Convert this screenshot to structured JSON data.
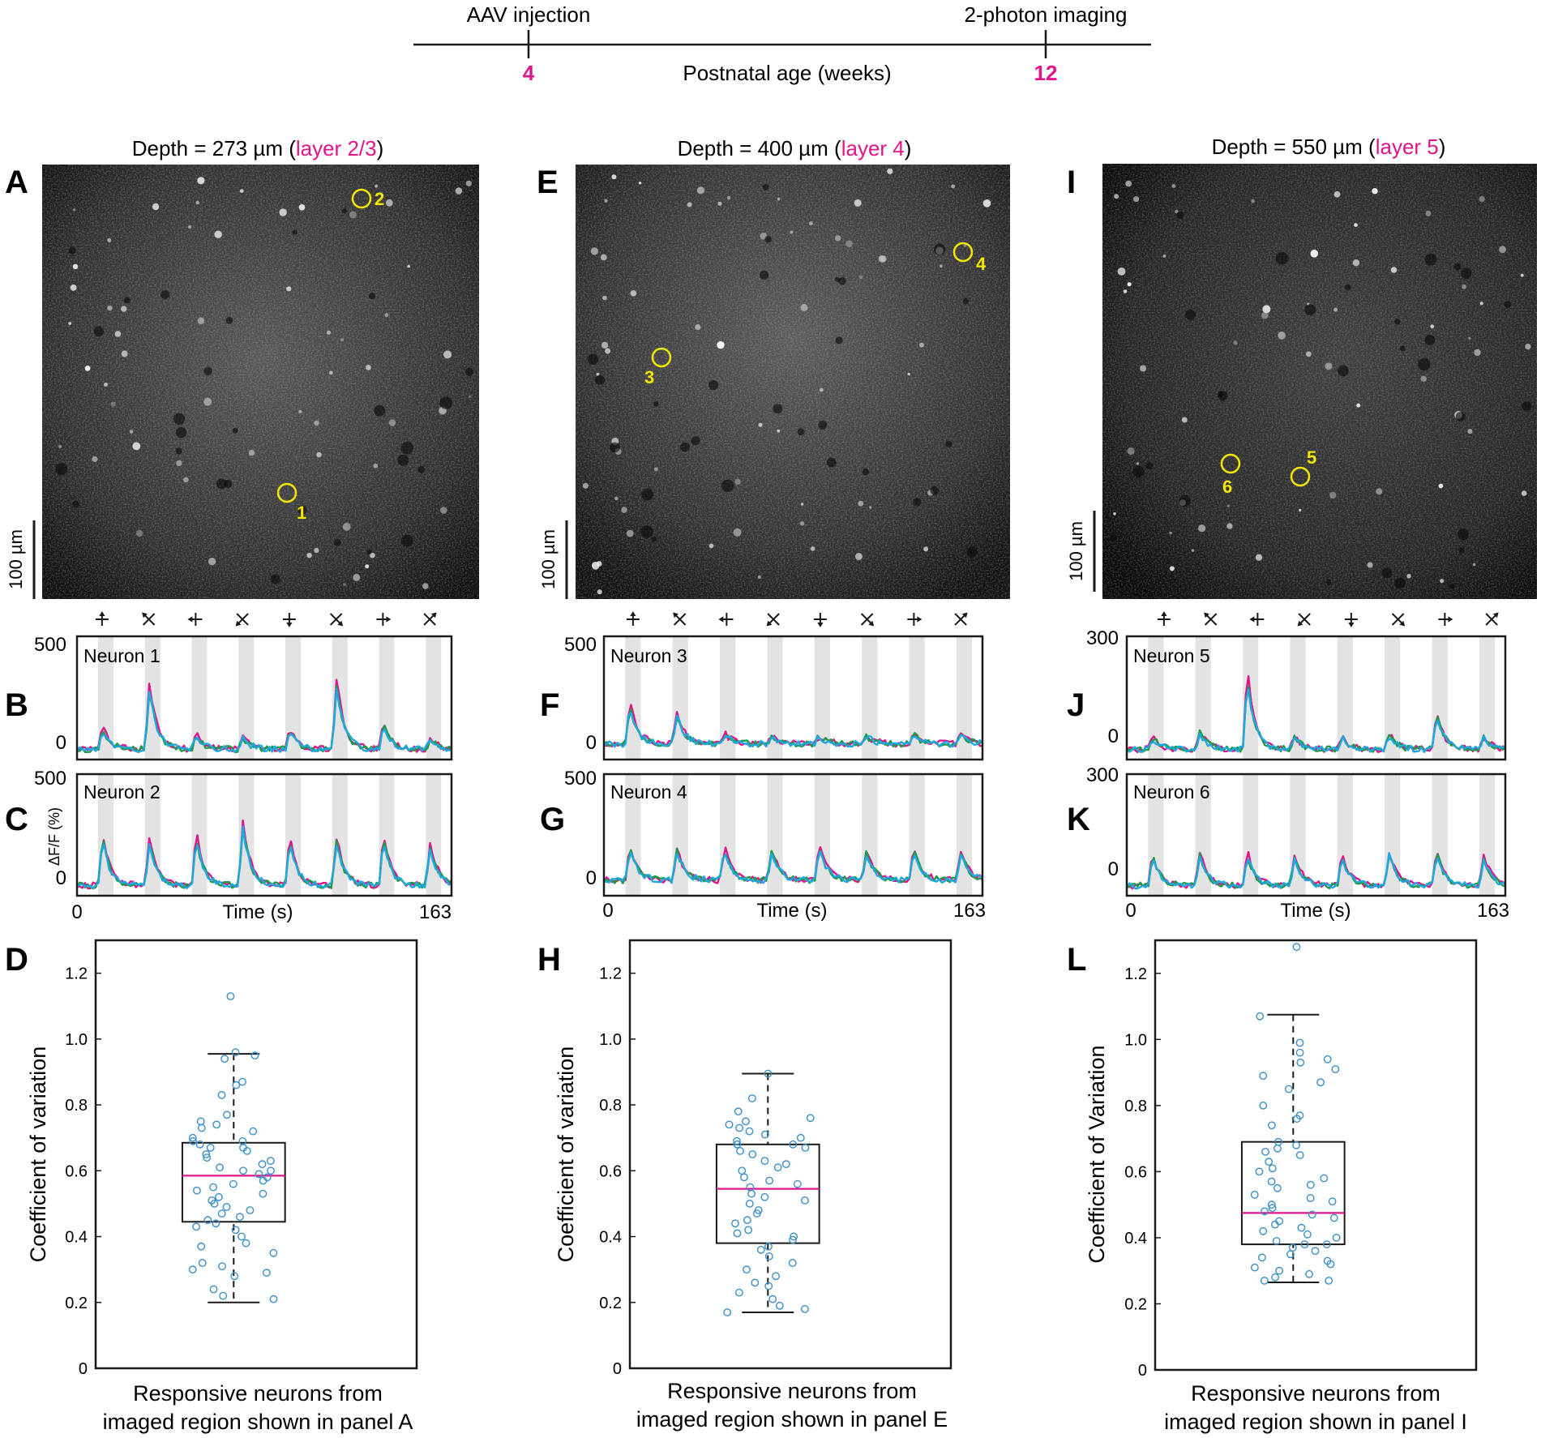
{
  "colors": {
    "accent": "#e0158a",
    "yellow": "#f2e600",
    "trace_magenta": "#e0158a",
    "trace_green": "#1f9a4a",
    "trace_cyan": "#1ea8e0",
    "stim_band": "#e3e3e3",
    "box_point": "#3a8fc7",
    "median": "#e0158a"
  },
  "timeline": {
    "start_label": "AAV injection",
    "end_label": "2-photon imaging",
    "start_value": "4",
    "end_value": "12",
    "axis_label": "Postnatal age (weeks)"
  },
  "direction_icons": [
    "up-arrow-icon",
    "up-left-arrow-icon",
    "left-arrow-icon",
    "down-left-arrow-icon",
    "down-arrow-icon",
    "down-right-arrow-icon",
    "right-arrow-icon",
    "up-right-arrow-icon"
  ],
  "columns": [
    {
      "depth_label": "Depth = 273 µm (",
      "layer_label": "layer 2/3",
      "close_paren": ")",
      "image_letter": "A",
      "scalebar_label": "100 µm",
      "neurons": [
        {
          "label": "1"
        },
        {
          "label": "2"
        }
      ],
      "traces": [
        {
          "letter": "B",
          "title": "Neuron 1",
          "ytop": "500",
          "ybottom": "0"
        },
        {
          "letter": "C",
          "title": "Neuron 2",
          "ytop": "500",
          "ybottom": "0",
          "ylabel": "ΔF/F (%)"
        }
      ],
      "time_axis": {
        "start": "0",
        "end": "163",
        "label": "Time (s)"
      },
      "box_letter": "D",
      "ylabel": "Coefficient of variation",
      "xlabel_line1": "Responsive neurons from",
      "xlabel_line2": "imaged region shown in panel A"
    },
    {
      "depth_label": "Depth = 400 µm (",
      "layer_label": "layer 4",
      "close_paren": ")",
      "image_letter": "E",
      "scalebar_label": "100 µm",
      "neurons": [
        {
          "label": "3"
        },
        {
          "label": "4"
        }
      ],
      "traces": [
        {
          "letter": "F",
          "title": "Neuron 3",
          "ytop": "500",
          "ybottom": "0"
        },
        {
          "letter": "G",
          "title": "Neuron 4",
          "ytop": "500",
          "ybottom": "0"
        }
      ],
      "time_axis": {
        "start": "0",
        "end": "163",
        "label": "Time (s)"
      },
      "box_letter": "H",
      "ylabel": "Coefficient of variation",
      "xlabel_line1": "Responsive neurons from",
      "xlabel_line2": "imaged region shown in panel E"
    },
    {
      "depth_label": "Depth = 550 µm (",
      "layer_label": "layer 5",
      "close_paren": ")",
      "image_letter": "I",
      "scalebar_label": "100 µm",
      "neurons": [
        {
          "label": "5"
        },
        {
          "label": "6"
        }
      ],
      "traces": [
        {
          "letter": "J",
          "title": "Neuron 5",
          "ytop": "300",
          "ybottom": "0"
        },
        {
          "letter": "K",
          "title": "Neuron 6",
          "ytop": "300",
          "ybottom": "0"
        }
      ],
      "time_axis": {
        "start": "0",
        "end": "163",
        "label": "Time (s)"
      },
      "box_letter": "L",
      "ylabel": "Coefficient of Variation",
      "xlabel_line1": "Responsive neurons from",
      "xlabel_line2": "imaged region shown in panel I"
    }
  ],
  "chart_data": [
    {
      "type": "line",
      "title": "Neuron 1",
      "xlabel": "Time (s)",
      "ylabel": "ΔF/F (%)",
      "xlim": [
        0,
        163
      ],
      "ylim": [
        -50,
        550
      ],
      "yticks": [
        0,
        500
      ],
      "series": [
        "trial 1 (magenta)",
        "trial 2 (green)",
        "trial 3 (cyan)"
      ],
      "stimulus_blocks": 8,
      "response_peaks": [
        120,
        360,
        80,
        70,
        110,
        380,
        140,
        60
      ]
    },
    {
      "type": "line",
      "title": "Neuron 2",
      "xlabel": "Time (s)",
      "ylabel": "ΔF/F (%)",
      "xlim": [
        0,
        163
      ],
      "ylim": [
        -50,
        550
      ],
      "yticks": [
        0,
        500
      ],
      "series": [
        "trial 1 (magenta)",
        "trial 2 (green)",
        "trial 3 (cyan)"
      ],
      "stimulus_blocks": 8,
      "response_peaks": [
        280,
        260,
        290,
        350,
        260,
        260,
        280,
        240
      ]
    },
    {
      "type": "line",
      "title": "Neuron 3",
      "xlabel": "Time (s)",
      "ylabel": "ΔF/F (%)",
      "xlim": [
        0,
        163
      ],
      "ylim": [
        -80,
        550
      ],
      "yticks": [
        0,
        500
      ],
      "series": [
        "trial 1 (magenta)",
        "trial 2 (green)",
        "trial 3 (cyan)"
      ],
      "stimulus_blocks": 8,
      "response_peaks": [
        240,
        180,
        60,
        50,
        50,
        50,
        60,
        50
      ]
    },
    {
      "type": "line",
      "title": "Neuron 4",
      "xlabel": "Time (s)",
      "ylabel": "ΔF/F (%)",
      "xlim": [
        0,
        163
      ],
      "ylim": [
        -80,
        550
      ],
      "yticks": [
        0,
        500
      ],
      "series": [
        "trial 1 (magenta)",
        "trial 2 (green)",
        "trial 3 (cyan)"
      ],
      "stimulus_blocks": 8,
      "response_peaks": [
        200,
        180,
        190,
        180,
        210,
        180,
        190,
        170
      ]
    },
    {
      "type": "line",
      "title": "Neuron 5",
      "xlabel": "Time (s)",
      "ylabel": "ΔF/F (%)",
      "xlim": [
        0,
        163
      ],
      "ylim": [
        -30,
        330
      ],
      "yticks": [
        0,
        300
      ],
      "series": [
        "trial 1 (magenta)",
        "trial 2 (green)",
        "trial 3 (cyan)"
      ],
      "stimulus_blocks": 8,
      "response_peaks": [
        40,
        60,
        250,
        40,
        40,
        50,
        120,
        40
      ]
    },
    {
      "type": "line",
      "title": "Neuron 6",
      "xlabel": "Time (s)",
      "ylabel": "ΔF/F (%)",
      "xlim": [
        0,
        163
      ],
      "ylim": [
        -30,
        330
      ],
      "yticks": [
        0,
        300
      ],
      "series": [
        "trial 1 (magenta)",
        "trial 2 (green)",
        "trial 3 (cyan)"
      ],
      "stimulus_blocks": 8,
      "response_peaks": [
        100,
        110,
        110,
        100,
        110,
        110,
        120,
        100
      ]
    },
    {
      "type": "scatter",
      "subtype": "box",
      "title": "",
      "xlabel": "Responsive neurons from imaged region shown in panel A",
      "ylabel": "Coefficient of variation",
      "ylim": [
        0,
        1.3
      ],
      "yticks": [
        0,
        0.2,
        0.4,
        0.6,
        0.8,
        1.0,
        1.2
      ],
      "box": {
        "whisker_low": 0.2,
        "q1": 0.445,
        "median": 0.585,
        "q3": 0.685,
        "whisker_high": 0.955
      },
      "values": [
        1.13,
        0.96,
        0.95,
        0.94,
        0.87,
        0.86,
        0.83,
        0.77,
        0.75,
        0.74,
        0.73,
        0.72,
        0.7,
        0.69,
        0.69,
        0.68,
        0.67,
        0.67,
        0.66,
        0.65,
        0.64,
        0.63,
        0.62,
        0.61,
        0.6,
        0.6,
        0.59,
        0.58,
        0.57,
        0.56,
        0.55,
        0.54,
        0.53,
        0.52,
        0.51,
        0.5,
        0.49,
        0.48,
        0.47,
        0.46,
        0.45,
        0.44,
        0.43,
        0.42,
        0.4,
        0.38,
        0.37,
        0.35,
        0.32,
        0.31,
        0.3,
        0.29,
        0.28,
        0.24,
        0.22,
        0.21
      ]
    },
    {
      "type": "scatter",
      "subtype": "box",
      "title": "",
      "xlabel": "Responsive neurons from imaged region shown in panel E",
      "ylabel": "Coefficient of variation",
      "ylim": [
        0,
        1.3
      ],
      "yticks": [
        0,
        0.2,
        0.4,
        0.6,
        0.8,
        1.0,
        1.2
      ],
      "box": {
        "whisker_low": 0.17,
        "q1": 0.38,
        "median": 0.545,
        "q3": 0.68,
        "whisker_high": 0.895
      },
      "values": [
        0.895,
        0.82,
        0.78,
        0.76,
        0.75,
        0.74,
        0.73,
        0.72,
        0.71,
        0.7,
        0.69,
        0.68,
        0.68,
        0.67,
        0.66,
        0.65,
        0.63,
        0.62,
        0.61,
        0.6,
        0.58,
        0.57,
        0.56,
        0.55,
        0.53,
        0.52,
        0.51,
        0.5,
        0.48,
        0.47,
        0.45,
        0.44,
        0.42,
        0.41,
        0.4,
        0.39,
        0.37,
        0.36,
        0.34,
        0.32,
        0.3,
        0.28,
        0.26,
        0.25,
        0.23,
        0.21,
        0.19,
        0.18,
        0.17
      ]
    },
    {
      "type": "scatter",
      "subtype": "box",
      "title": "",
      "xlabel": "Responsive neurons from imaged region shown in panel I",
      "ylabel": "Coefficient of Variation",
      "ylim": [
        0,
        1.3
      ],
      "yticks": [
        0,
        0.2,
        0.4,
        0.6,
        0.8,
        1.0,
        1.2
      ],
      "box": {
        "whisker_low": 0.265,
        "q1": 0.38,
        "median": 0.475,
        "q3": 0.69,
        "whisker_high": 1.075
      },
      "values": [
        1.28,
        1.07,
        0.99,
        0.96,
        0.94,
        0.93,
        0.91,
        0.89,
        0.87,
        0.85,
        0.8,
        0.77,
        0.76,
        0.74,
        0.69,
        0.68,
        0.67,
        0.66,
        0.65,
        0.63,
        0.61,
        0.6,
        0.58,
        0.57,
        0.56,
        0.55,
        0.53,
        0.52,
        0.51,
        0.5,
        0.49,
        0.48,
        0.47,
        0.46,
        0.45,
        0.44,
        0.43,
        0.42,
        0.41,
        0.4,
        0.39,
        0.38,
        0.38,
        0.37,
        0.36,
        0.35,
        0.34,
        0.33,
        0.32,
        0.31,
        0.3,
        0.29,
        0.28,
        0.27,
        0.27
      ]
    }
  ]
}
